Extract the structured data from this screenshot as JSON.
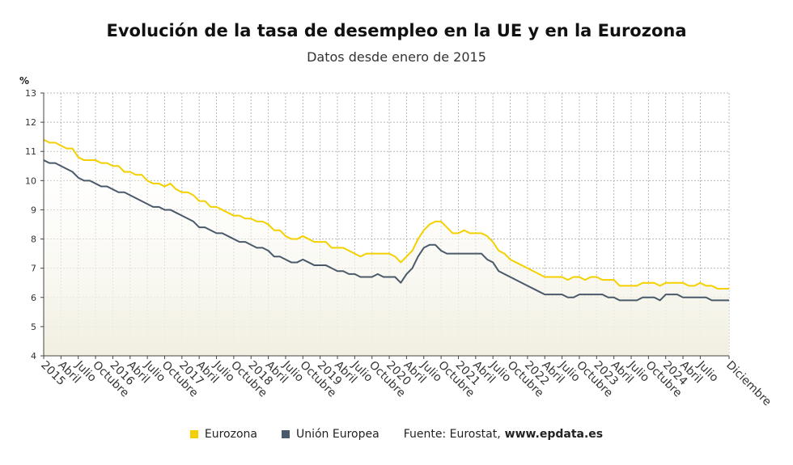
{
  "title": "Evolución de la tasa de desempleo en la UE y en la Eurozona",
  "subtitle": "Datos desde enero de 2015",
  "y_unit": "%",
  "legend": {
    "eurozona": "Eurozona",
    "ue": "Unión Europea",
    "source_prefix": "Fuente: Eurostat,",
    "source_site": "www.epdata.es"
  },
  "colors": {
    "eurozona": "#f5d000",
    "ue": "#4a5a6a",
    "fill": "#f1efe0",
    "grid": "#b8b8b8"
  },
  "chart_data": {
    "type": "line",
    "x_start": "2015-01",
    "x_end": "2024-12",
    "ylim": [
      4,
      13
    ],
    "yticks": [
      4,
      5,
      6,
      7,
      8,
      9,
      10,
      11,
      12,
      13
    ],
    "grid": true,
    "legend_position": "bottom",
    "x_tick_labels": [
      {
        "month": 0,
        "label": "2015"
      },
      {
        "month": 3,
        "label": "Abril"
      },
      {
        "month": 6,
        "label": "Julio"
      },
      {
        "month": 9,
        "label": "Octubre"
      },
      {
        "month": 12,
        "label": "2016"
      },
      {
        "month": 15,
        "label": "Abril"
      },
      {
        "month": 18,
        "label": "Julio"
      },
      {
        "month": 21,
        "label": "Octubre"
      },
      {
        "month": 24,
        "label": "2017"
      },
      {
        "month": 27,
        "label": "Abril"
      },
      {
        "month": 30,
        "label": "Julio"
      },
      {
        "month": 33,
        "label": "Octubre"
      },
      {
        "month": 36,
        "label": "2018"
      },
      {
        "month": 39,
        "label": "Abril"
      },
      {
        "month": 42,
        "label": "Julio"
      },
      {
        "month": 45,
        "label": "Octubre"
      },
      {
        "month": 48,
        "label": "2019"
      },
      {
        "month": 51,
        "label": "Abril"
      },
      {
        "month": 54,
        "label": "Julio"
      },
      {
        "month": 57,
        "label": "Octubre"
      },
      {
        "month": 60,
        "label": "2020"
      },
      {
        "month": 63,
        "label": "Abril"
      },
      {
        "month": 66,
        "label": "Julio"
      },
      {
        "month": 69,
        "label": "Octubre"
      },
      {
        "month": 72,
        "label": "2021"
      },
      {
        "month": 75,
        "label": "Abril"
      },
      {
        "month": 78,
        "label": "Julio"
      },
      {
        "month": 81,
        "label": "Octubre"
      },
      {
        "month": 84,
        "label": "2022"
      },
      {
        "month": 87,
        "label": "Abril"
      },
      {
        "month": 90,
        "label": "Julio"
      },
      {
        "month": 93,
        "label": "Octubre"
      },
      {
        "month": 96,
        "label": "2023"
      },
      {
        "month": 99,
        "label": "Abril"
      },
      {
        "month": 102,
        "label": "Julio"
      },
      {
        "month": 105,
        "label": "Octubre"
      },
      {
        "month": 108,
        "label": "2024"
      },
      {
        "month": 111,
        "label": "Abril"
      },
      {
        "month": 114,
        "label": "Julio"
      },
      {
        "month": 119,
        "label": "Diciembre"
      }
    ],
    "series": [
      {
        "name": "Eurozona",
        "values": [
          11.4,
          11.3,
          11.3,
          11.2,
          11.1,
          11.1,
          10.8,
          10.7,
          10.7,
          10.7,
          10.6,
          10.6,
          10.5,
          10.5,
          10.3,
          10.3,
          10.2,
          10.2,
          10.0,
          9.9,
          9.9,
          9.8,
          9.9,
          9.7,
          9.6,
          9.6,
          9.5,
          9.3,
          9.3,
          9.1,
          9.1,
          9.0,
          8.9,
          8.8,
          8.8,
          8.7,
          8.7,
          8.6,
          8.6,
          8.5,
          8.3,
          8.3,
          8.1,
          8.0,
          8.0,
          8.1,
          8.0,
          7.9,
          7.9,
          7.9,
          7.7,
          7.7,
          7.7,
          7.6,
          7.5,
          7.4,
          7.5,
          7.5,
          7.5,
          7.5,
          7.5,
          7.4,
          7.2,
          7.4,
          7.6,
          8.0,
          8.3,
          8.5,
          8.6,
          8.6,
          8.4,
          8.2,
          8.2,
          8.3,
          8.2,
          8.2,
          8.2,
          8.1,
          7.9,
          7.6,
          7.5,
          7.3,
          7.2,
          7.1,
          7.0,
          6.9,
          6.8,
          6.7,
          6.7,
          6.7,
          6.7,
          6.6,
          6.7,
          6.7,
          6.6,
          6.7,
          6.7,
          6.6,
          6.6,
          6.6,
          6.4,
          6.4,
          6.4,
          6.4,
          6.5,
          6.5,
          6.5,
          6.4,
          6.5,
          6.5,
          6.5,
          6.5,
          6.4,
          6.4,
          6.5,
          6.4,
          6.4,
          6.3,
          6.3,
          6.3
        ]
      },
      {
        "name": "Unión Europea",
        "values": [
          10.7,
          10.6,
          10.6,
          10.5,
          10.4,
          10.3,
          10.1,
          10.0,
          10.0,
          9.9,
          9.8,
          9.8,
          9.7,
          9.6,
          9.6,
          9.5,
          9.4,
          9.3,
          9.2,
          9.1,
          9.1,
          9.0,
          9.0,
          8.9,
          8.8,
          8.7,
          8.6,
          8.4,
          8.4,
          8.3,
          8.2,
          8.2,
          8.1,
          8.0,
          7.9,
          7.9,
          7.8,
          7.7,
          7.7,
          7.6,
          7.4,
          7.4,
          7.3,
          7.2,
          7.2,
          7.3,
          7.2,
          7.1,
          7.1,
          7.1,
          7.0,
          6.9,
          6.9,
          6.8,
          6.8,
          6.7,
          6.7,
          6.7,
          6.8,
          6.7,
          6.7,
          6.7,
          6.5,
          6.8,
          7.0,
          7.4,
          7.7,
          7.8,
          7.8,
          7.6,
          7.5,
          7.5,
          7.5,
          7.5,
          7.5,
          7.5,
          7.5,
          7.3,
          7.2,
          6.9,
          6.8,
          6.7,
          6.6,
          6.5,
          6.4,
          6.3,
          6.2,
          6.1,
          6.1,
          6.1,
          6.1,
          6.0,
          6.0,
          6.1,
          6.1,
          6.1,
          6.1,
          6.1,
          6.0,
          6.0,
          5.9,
          5.9,
          5.9,
          5.9,
          6.0,
          6.0,
          6.0,
          5.9,
          6.1,
          6.1,
          6.1,
          6.0,
          6.0,
          6.0,
          6.0,
          6.0,
          5.9,
          5.9,
          5.9,
          5.9
        ]
      }
    ]
  }
}
